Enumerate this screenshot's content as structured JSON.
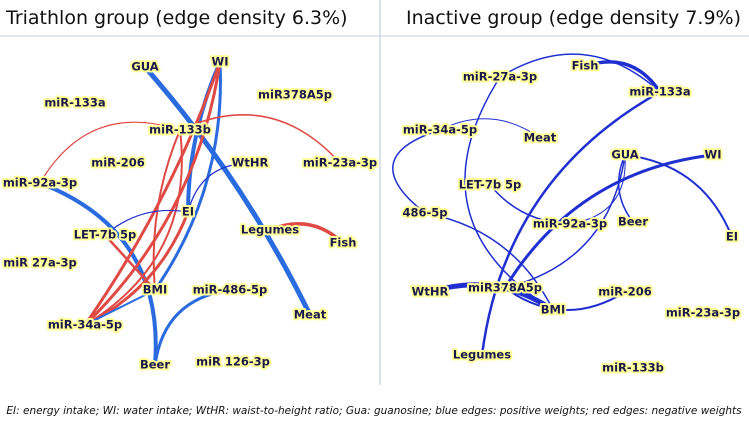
{
  "panels": [
    {
      "title": "Triathlon group (edge density 6.3%)",
      "nodes": [
        {
          "label": "GUA"
        },
        {
          "label": "WI"
        },
        {
          "label": "miR378A5p"
        },
        {
          "label": "miR-133a"
        },
        {
          "label": "miR-133b"
        },
        {
          "label": "miR-206"
        },
        {
          "label": "WtHR"
        },
        {
          "label": "miR-23a-3p"
        },
        {
          "label": "miR-92a-3p"
        },
        {
          "label": "EI"
        },
        {
          "label": "LET-7b 5p"
        },
        {
          "label": "Legumes"
        },
        {
          "label": "Fish"
        },
        {
          "label": "miR 27a-3p"
        },
        {
          "label": "BMI"
        },
        {
          "label": "miR-486-5p"
        },
        {
          "label": "Meat"
        },
        {
          "label": "miR-34a-5p"
        },
        {
          "label": "Beer"
        },
        {
          "label": "miR 126-3p"
        }
      ]
    },
    {
      "title": "Inactive group (edge density 7.9%)",
      "nodes": [
        {
          "label": "Fish"
        },
        {
          "label": "miR-27a-3p"
        },
        {
          "label": "miR-133a"
        },
        {
          "label": "miR-34a-5p"
        },
        {
          "label": "Meat"
        },
        {
          "label": "GUA"
        },
        {
          "label": "WI"
        },
        {
          "label": "LET-7b 5p"
        },
        {
          "label": "486-5p"
        },
        {
          "label": "miR-92a-3p"
        },
        {
          "label": "Beer"
        },
        {
          "label": "EI"
        },
        {
          "label": "miR378A5p"
        },
        {
          "label": "WtHR"
        },
        {
          "label": "miR-206"
        },
        {
          "label": "BMI"
        },
        {
          "label": "miR-23a-3p"
        },
        {
          "label": "Legumes"
        },
        {
          "label": "miR-133b"
        }
      ]
    }
  ],
  "caption": "EI: energy intake; WI: water intake; WtHR: waist-to-height ratio; Gua: guanosine; blue edges: positive weights; red edges: negative weights"
}
